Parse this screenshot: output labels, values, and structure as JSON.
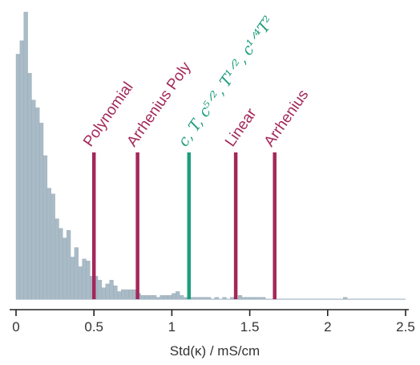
{
  "chart_data": {
    "type": "bar",
    "title": "",
    "xlabel": "Std(κ) / mS/cm",
    "ylabel": "",
    "xlim": [
      0,
      2.5
    ],
    "xticks": [
      0,
      0.5,
      1,
      1.5,
      2,
      2.5
    ],
    "xtick_labels": [
      "0",
      "0.5",
      "1",
      "1.5",
      "2",
      "2.5"
    ],
    "grid": false,
    "colors": {
      "histogram": "#a9bbc6",
      "histogram_edge": "#97aab6",
      "marker_default": "#a3285a",
      "marker_highlight": "#1e9e7c",
      "axis": "#222222"
    },
    "histogram": {
      "bin_width": 0.025,
      "bin_start": 0,
      "counts": [
        128,
        135,
        150,
        118,
        104,
        100,
        92,
        75,
        58,
        55,
        42,
        37,
        32,
        36,
        22,
        27,
        17,
        21,
        20,
        12,
        12,
        10,
        6,
        8,
        10,
        7,
        4,
        5,
        5,
        5,
        5,
        3,
        2,
        2,
        2,
        2,
        1,
        2,
        2,
        2,
        3,
        4,
        2,
        1,
        1,
        1,
        1,
        1,
        1,
        1,
        0,
        1,
        0,
        1,
        0,
        1,
        0,
        2,
        1,
        1,
        1,
        1,
        1,
        1,
        0,
        0,
        0,
        0,
        0,
        0,
        0,
        0,
        0,
        0,
        0,
        0,
        0,
        0,
        0,
        0,
        0,
        0,
        0,
        0,
        1,
        0,
        0,
        0,
        0,
        0,
        0,
        0,
        0,
        0,
        0,
        0,
        0,
        0,
        0,
        0
      ]
    },
    "markers": [
      {
        "label": "Polynomial",
        "x": 0.5,
        "style": "default",
        "math": false
      },
      {
        "label": "Arrhenius Poly",
        "x": 0.78,
        "style": "default",
        "math": false
      },
      {
        "label": "c, T, c^{5/2}, T^{1/2}, c^{1/4}T^2",
        "display": "c, T, c⁵ᐟ², T¹ᐟ², c¹ᐟ⁴T²",
        "x": 1.11,
        "style": "highlight",
        "math": true
      },
      {
        "label": "Linear",
        "x": 1.41,
        "style": "default",
        "math": false
      },
      {
        "label": "Arrhenius",
        "x": 1.66,
        "style": "default",
        "math": false
      }
    ]
  }
}
